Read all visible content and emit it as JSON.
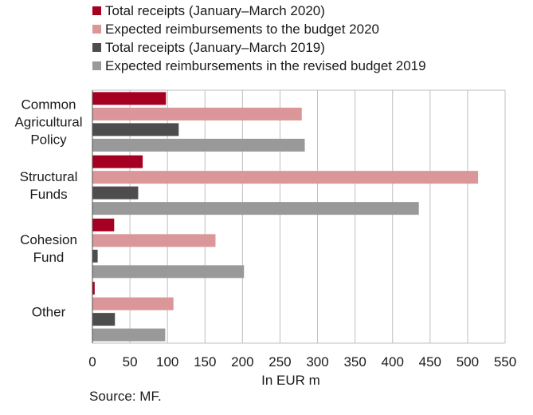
{
  "chart_data": {
    "type": "bar",
    "orientation": "horizontal",
    "categories": [
      "Common Agricultural Policy",
      "Structural Funds",
      "Cohesion Fund",
      "Other"
    ],
    "category_lines": [
      [
        "Common",
        "Agricultural",
        "Policy"
      ],
      [
        "Structural",
        "Funds"
      ],
      [
        "Cohesion",
        "Fund"
      ],
      [
        "Other"
      ]
    ],
    "series": [
      {
        "name": "Total receipts (January–March 2020)",
        "color": "#a50021",
        "values": [
          98,
          67,
          29,
          3
        ]
      },
      {
        "name": "Expected reimbursements to the budget  2020",
        "color": "#da9698",
        "values": [
          279,
          514,
          164,
          108
        ]
      },
      {
        "name": "Total receipts (January–March 2019)",
        "color": "#4d4d4d",
        "values": [
          115,
          61,
          7,
          30
        ]
      },
      {
        "name": "Expected reimbursements in the revised budget 2019",
        "color": "#999999",
        "values": [
          283,
          435,
          202,
          97
        ]
      }
    ],
    "xlabel": "In EUR m",
    "xlim": [
      0,
      550
    ],
    "xticks": [
      0,
      50,
      100,
      150,
      200,
      250,
      300,
      350,
      400,
      450,
      500,
      550
    ],
    "grid": true,
    "legend_position": "top"
  },
  "source": "Source: MF."
}
